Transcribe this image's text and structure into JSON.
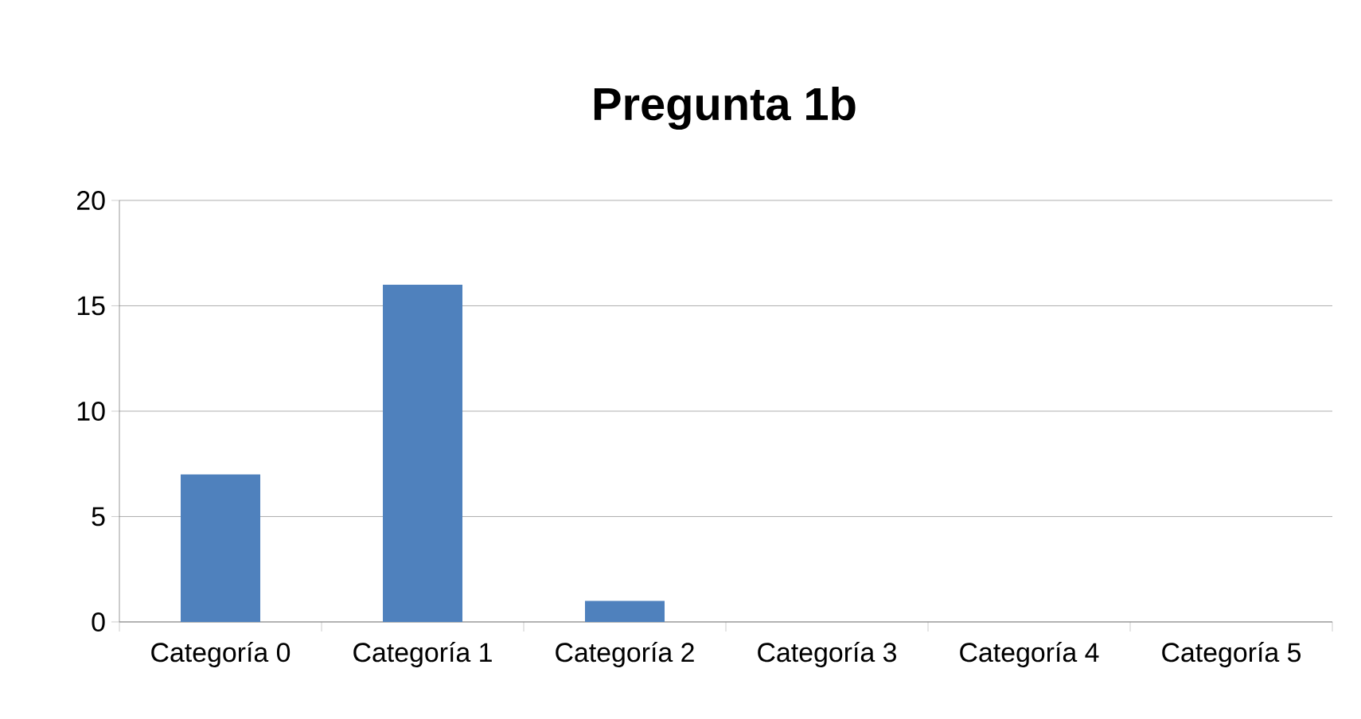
{
  "chart_data": {
    "type": "bar",
    "title": "Pregunta 1b",
    "categories": [
      "Categoría 0",
      "Categoría 1",
      "Categoría 2",
      "Categoría 3",
      "Categoría 4",
      "Categoría 5"
    ],
    "values": [
      7,
      16,
      1,
      0,
      0,
      0
    ],
    "color": "#4f81bd",
    "ylim": [
      0,
      20
    ],
    "yticks": [
      0,
      5,
      10,
      15,
      20
    ],
    "grid": "y"
  }
}
